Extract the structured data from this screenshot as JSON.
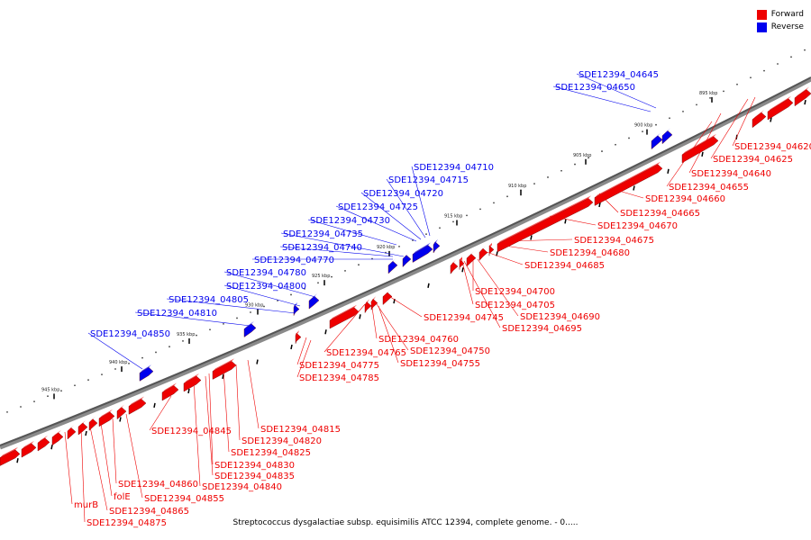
{
  "caption": "Streptococcus dysgalactiae subsp. equisimilis ATCC 12394, complete genome. - 0.....",
  "legend": {
    "forward_label": "Forward",
    "reverse_label": "Reverse",
    "forward_color": "#ee0000",
    "reverse_color": "#0000ee"
  },
  "colors": {
    "forward": "#ee0000",
    "reverse": "#0000ee",
    "backbone": "#555555"
  },
  "kbp_ticks": [
    "895 kbp",
    "900 kbp",
    "905 kbp",
    "910 kbp",
    "915 kbp",
    "920 kbp",
    "925 kbp",
    "930 kbp",
    "935 kbp",
    "940 kbp",
    "945 kbp"
  ],
  "forward_genes": [
    "SDE12394_04620",
    "SDE12394_04625",
    "SDE12394_04640",
    "SDE12394_04655",
    "SDE12394_04660",
    "SDE12394_04665",
    "SDE12394_04670",
    "SDE12394_04675",
    "SDE12394_04680",
    "SDE12394_04685",
    "SDE12394_04700",
    "SDE12394_04705",
    "SDE12394_04690",
    "SDE12394_04745",
    "SDE12394_04695",
    "SDE12394_04760",
    "SDE12394_04765",
    "SDE12394_04750",
    "SDE12394_04775",
    "SDE12394_04755",
    "SDE12394_04785",
    "SDE12394_04815",
    "SDE12394_04845",
    "SDE12394_04820",
    "SDE12394_04825",
    "SDE12394_04830",
    "SDE12394_04835",
    "SDE12394_04840",
    "SDE12394_04860",
    "folE",
    "SDE12394_04855",
    "murB",
    "SDE12394_04865",
    "SDE12394_04875"
  ],
  "reverse_genes": [
    "SDE12394_04645",
    "SDE12394_04650",
    "SDE12394_04710",
    "SDE12394_04715",
    "SDE12394_04720",
    "SDE12394_04725",
    "SDE12394_04730",
    "SDE12394_04735",
    "SDE12394_04740",
    "SDE12394_04770",
    "SDE12394_04780",
    "SDE12394_04800",
    "SDE12394_04805",
    "SDE12394_04810",
    "SDE12394_04850"
  ]
}
